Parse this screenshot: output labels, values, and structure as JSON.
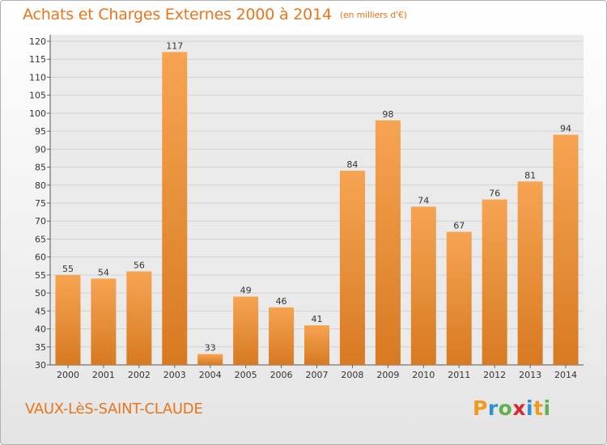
{
  "page": {
    "title": "Achats et Charges Externes 2000 à 2014",
    "subtitle": "(en milliers d'€)",
    "commune": "VAUX-LèS-SAINT-CLAUDE",
    "logo_letters": [
      "P",
      "r",
      "o",
      "x",
      "i",
      "t",
      "i"
    ]
  },
  "colors": {
    "accent": "#e8761c",
    "bar_light": "#f6a452",
    "bar_dark": "#d77a22"
  },
  "chart_data": {
    "type": "bar",
    "title": "Achats et Charges Externes 2000 à 2014",
    "subtitle": "(en milliers d'€)",
    "xlabel": "",
    "ylabel": "",
    "categories": [
      "2000",
      "2001",
      "2002",
      "2003",
      "2004",
      "2005",
      "2006",
      "2007",
      "2008",
      "2009",
      "2010",
      "2011",
      "2012",
      "2013",
      "2014"
    ],
    "values": [
      55,
      54,
      56,
      117,
      33,
      49,
      46,
      41,
      84,
      98,
      74,
      67,
      76,
      81,
      94
    ],
    "ylim": [
      30,
      120
    ],
    "yticks": [
      30,
      35,
      40,
      45,
      50,
      55,
      60,
      65,
      70,
      75,
      80,
      85,
      90,
      95,
      100,
      105,
      110,
      115,
      120
    ],
    "grid": true,
    "data_labels": true,
    "legend": "none"
  }
}
